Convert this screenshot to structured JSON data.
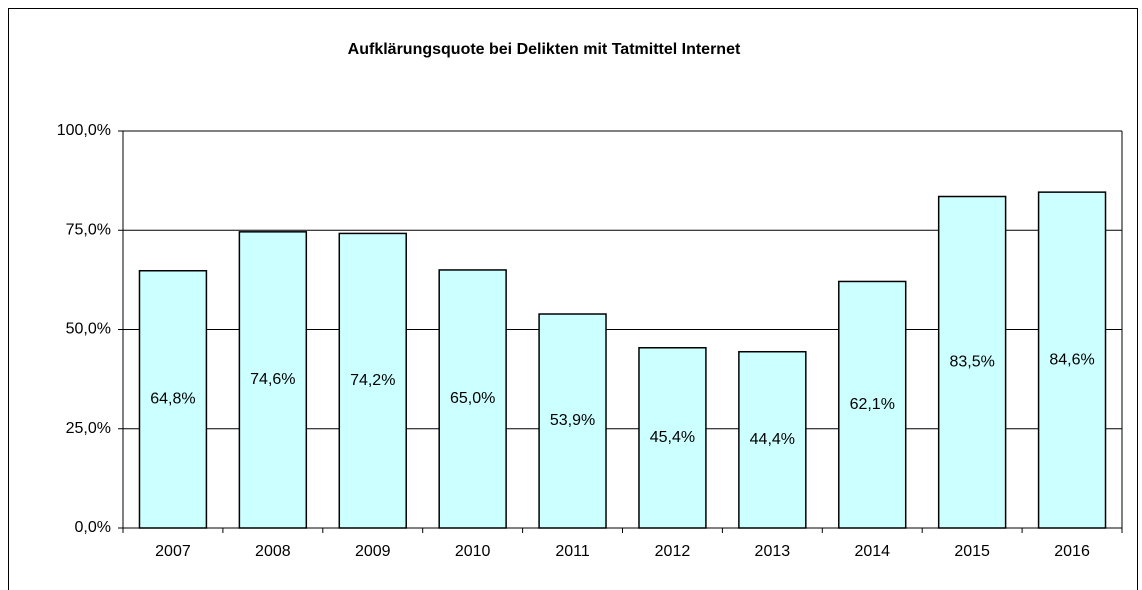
{
  "chart_data": {
    "type": "bar",
    "title": "Aufklärungsquote bei Delikten mit Tatmittel Internet",
    "categories": [
      "2007",
      "2008",
      "2009",
      "2010",
      "2011",
      "2012",
      "2013",
      "2014",
      "2015",
      "2016"
    ],
    "values": [
      64.8,
      74.6,
      74.2,
      65.0,
      53.9,
      45.4,
      44.4,
      62.1,
      83.5,
      84.6
    ],
    "value_labels": [
      "64,8%",
      "74,6%",
      "74,2%",
      "65,0%",
      "53,9%",
      "45,4%",
      "44,4%",
      "62,1%",
      "83,5%",
      "84,6%"
    ],
    "color": "#ccffff",
    "ylim": [
      0,
      100
    ],
    "yticks": [
      {
        "value": 0,
        "label": "0,0%"
      },
      {
        "value": 25,
        "label": "25,0%"
      },
      {
        "value": 50,
        "label": "50,0%"
      },
      {
        "value": 75,
        "label": "75,0%"
      },
      {
        "value": 100,
        "label": "100,0%"
      }
    ],
    "grid": true
  }
}
